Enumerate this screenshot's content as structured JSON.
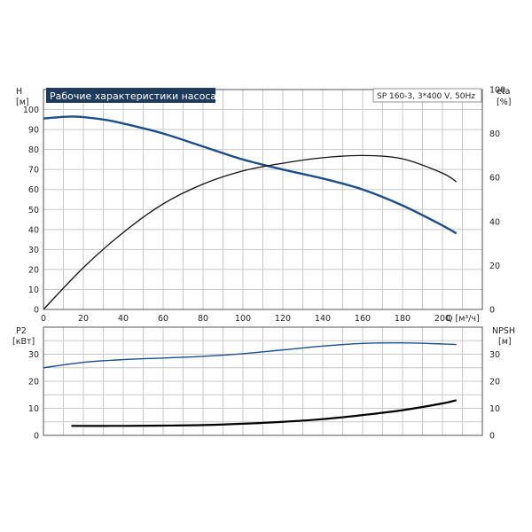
{
  "chart_data": [
    {
      "type": "line",
      "title": "Рабочие характеристики насоса",
      "subtitle": "SP 160-3, 3*400 V, 50Hz",
      "ylabel": "H",
      "yunit": "[м]",
      "xlabel": "Q [м³/ч]",
      "y2label": "eta",
      "y2unit": "[%]",
      "xlim": [
        0,
        220
      ],
      "ylim": [
        0,
        110
      ],
      "y2lim": [
        0,
        100
      ],
      "x_ticks": [
        "0",
        "20",
        "40",
        "60",
        "80",
        "100",
        "120",
        "140",
        "160",
        "180",
        "200"
      ],
      "y_ticks": [
        "0",
        "10",
        "20",
        "30",
        "40",
        "50",
        "60",
        "70",
        "80",
        "90",
        "100"
      ],
      "y2_ticks": [
        "0",
        "20",
        "40",
        "60",
        "80",
        "100"
      ],
      "grid": true,
      "colors": {
        "head": "#1c4f8a",
        "efficiency": "#111111"
      },
      "series": [
        {
          "axis": "left",
          "x": [
            0,
            15,
            30,
            40,
            60,
            80,
            100,
            120,
            140,
            160,
            180,
            200,
            207
          ],
          "values": [
            95.5,
            96.5,
            95,
            93,
            88,
            81.5,
            75,
            70,
            65.5,
            60,
            52,
            42,
            38
          ]
        },
        {
          "axis": "right",
          "x": [
            0,
            20,
            40,
            60,
            80,
            100,
            120,
            140,
            160,
            180,
            200,
            207
          ],
          "values": [
            0,
            19,
            35,
            48,
            57,
            63,
            66.5,
            69,
            70,
            68.5,
            62,
            58
          ]
        }
      ]
    },
    {
      "type": "line",
      "ylabel": "P2",
      "yunit": "[кВт]",
      "y2label": "NPSH",
      "y2unit": "[м]",
      "xlim": [
        0,
        220
      ],
      "ylim": [
        0,
        40
      ],
      "y2lim": [
        0,
        40
      ],
      "y_ticks": [
        "0",
        "10",
        "20",
        "30"
      ],
      "y2_ticks": [
        "0",
        "10",
        "20",
        "30"
      ],
      "grid": true,
      "colors": {
        "power": "#1c4f8a",
        "npsh": "#000000"
      },
      "series": [
        {
          "axis": "left",
          "x": [
            0,
            20,
            40,
            60,
            80,
            100,
            120,
            140,
            160,
            180,
            200,
            207
          ],
          "values": [
            25,
            27,
            28,
            28.6,
            29.2,
            30.2,
            31.6,
            33,
            34,
            34.2,
            33.8,
            33.6
          ]
        },
        {
          "axis": "right",
          "x": [
            14,
            40,
            60,
            80,
            100,
            120,
            140,
            160,
            180,
            200,
            207
          ],
          "values": [
            3.5,
            3.5,
            3.6,
            3.8,
            4.3,
            5,
            6,
            7.5,
            9.3,
            11.8,
            13
          ]
        }
      ]
    }
  ]
}
